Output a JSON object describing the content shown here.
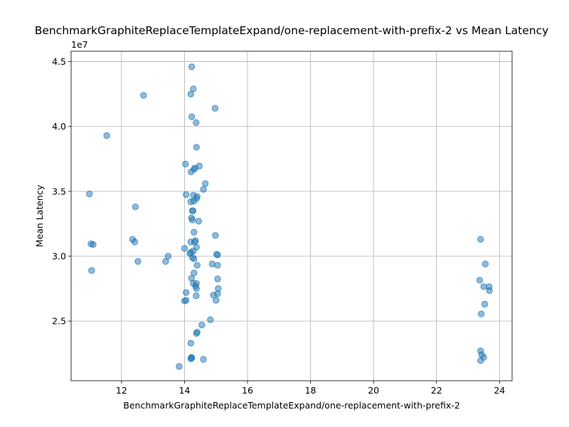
{
  "chart_data": {
    "type": "scatter",
    "title": "BenchmarkGraphiteReplaceTemplateExpand/one-replacement-with-prefix-2 vs Mean Latency",
    "xlabel": "BenchmarkGraphiteReplaceTemplateExpand/one-replacement-with-prefix-2",
    "ylabel": "Mean Latency",
    "y_multiplier_label": "1e7",
    "y_multiplier": 10000000,
    "xlim": [
      10.4,
      24.4
    ],
    "ylim": [
      20400000,
      45800000
    ],
    "x_ticks": [
      12,
      14,
      16,
      18,
      20,
      22,
      24
    ],
    "x_tick_labels": [
      "12",
      "14",
      "16",
      "18",
      "20",
      "22",
      "24"
    ],
    "y_ticks": [
      25000000,
      30000000,
      35000000,
      40000000,
      45000000
    ],
    "y_tick_labels": [
      "2.5",
      "3.0",
      "3.5",
      "4.0",
      "4.5"
    ],
    "grid": true,
    "marker_color": "#1f77b4",
    "marker_alpha": 0.5,
    "points": [
      [
        14.23,
        44.6
      ],
      [
        14.28,
        42.9
      ],
      [
        14.2,
        42.5
      ],
      [
        12.7,
        42.4
      ],
      [
        14.97,
        41.4
      ],
      [
        14.23,
        40.75
      ],
      [
        14.37,
        40.3
      ],
      [
        11.53,
        39.3
      ],
      [
        14.38,
        38.4
      ],
      [
        14.03,
        37.1
      ],
      [
        14.47,
        36.95
      ],
      [
        14.33,
        36.8
      ],
      [
        14.3,
        36.7
      ],
      [
        14.21,
        36.5
      ],
      [
        14.66,
        35.6
      ],
      [
        14.6,
        35.15
      ],
      [
        10.98,
        34.8
      ],
      [
        14.05,
        34.75
      ],
      [
        14.28,
        34.7
      ],
      [
        14.4,
        34.6
      ],
      [
        14.38,
        34.45
      ],
      [
        14.3,
        34.25
      ],
      [
        14.2,
        34.2
      ],
      [
        12.44,
        33.8
      ],
      [
        14.27,
        33.5
      ],
      [
        14.25,
        33.5
      ],
      [
        14.22,
        32.95
      ],
      [
        14.25,
        32.8
      ],
      [
        14.45,
        32.7
      ],
      [
        14.3,
        31.85
      ],
      [
        14.98,
        31.6
      ],
      [
        12.35,
        31.3
      ],
      [
        12.42,
        31.1
      ],
      [
        14.35,
        31.2
      ],
      [
        14.32,
        31.1
      ],
      [
        14.2,
        31.1
      ],
      [
        11.03,
        30.95
      ],
      [
        11.1,
        30.9
      ],
      [
        14.38,
        30.7
      ],
      [
        14.0,
        30.6
      ],
      [
        14.28,
        30.4
      ],
      [
        14.2,
        30.3
      ],
      [
        14.17,
        30.2
      ],
      [
        13.48,
        30.0
      ],
      [
        15.02,
        30.15
      ],
      [
        15.05,
        30.1
      ],
      [
        14.25,
        29.9
      ],
      [
        14.3,
        29.8
      ],
      [
        12.52,
        29.6
      ],
      [
        13.4,
        29.6
      ],
      [
        14.88,
        29.4
      ],
      [
        15.05,
        29.3
      ],
      [
        14.4,
        29.3
      ],
      [
        11.05,
        28.9
      ],
      [
        14.3,
        28.7
      ],
      [
        14.22,
        28.3
      ],
      [
        15.05,
        28.25
      ],
      [
        14.28,
        27.9
      ],
      [
        14.35,
        27.7
      ],
      [
        14.38,
        27.9
      ],
      [
        14.38,
        27.5
      ],
      [
        15.07,
        27.5
      ],
      [
        14.05,
        27.2
      ],
      [
        14.92,
        27.0
      ],
      [
        15.05,
        27.1
      ],
      [
        14.37,
        26.95
      ],
      [
        14.05,
        26.6
      ],
      [
        14.0,
        26.55
      ],
      [
        15.0,
        26.6
      ],
      [
        14.82,
        25.1
      ],
      [
        14.55,
        24.7
      ],
      [
        14.4,
        24.15
      ],
      [
        14.38,
        24.05
      ],
      [
        14.2,
        23.3
      ],
      [
        14.22,
        22.2
      ],
      [
        14.2,
        22.1
      ],
      [
        14.23,
        22.15
      ],
      [
        14.6,
        22.05
      ],
      [
        13.83,
        21.5
      ],
      [
        23.4,
        31.3
      ],
      [
        23.55,
        29.4
      ],
      [
        23.37,
        28.15
      ],
      [
        23.5,
        27.65
      ],
      [
        23.67,
        27.65
      ],
      [
        23.68,
        27.35
      ],
      [
        23.53,
        26.3
      ],
      [
        23.42,
        25.55
      ],
      [
        23.4,
        22.7
      ],
      [
        23.43,
        22.4
      ],
      [
        23.5,
        22.2
      ],
      [
        23.4,
        21.95
      ]
    ]
  }
}
